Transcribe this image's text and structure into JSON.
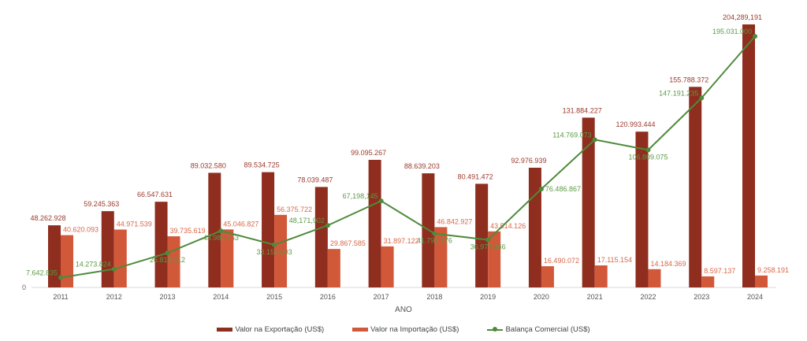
{
  "chart_data": {
    "type": "bar",
    "xlabel": "ANO",
    "ylabel": "",
    "ylim": [
      0,
      210000000
    ],
    "y_ticks": [
      "0"
    ],
    "grid": false,
    "legend_position": "bottom",
    "categories": [
      "2011",
      "2012",
      "2013",
      "2014",
      "2015",
      "2016",
      "2017",
      "2018",
      "2019",
      "2020",
      "2021",
      "2022",
      "2023",
      "2024"
    ],
    "series": [
      {
        "name": "Valor na Exportação (US$)",
        "type": "bar",
        "color": "#8f2d1e",
        "label_color": "#9b3a2c",
        "values": [
          48262928,
          59245363,
          66547631,
          89032580,
          89534725,
          78039487,
          99095267,
          88639203,
          80491472,
          92976939,
          131884227,
          120993444,
          155788372,
          204289191
        ],
        "labels": [
          "48.262.928",
          "59.245.363",
          "66.547.631",
          "89.032.580",
          "89.534.725",
          "78.039.487",
          "99.095.267",
          "88.639.203",
          "80.491.472",
          "92.976.939",
          "131.884.227",
          "120.993.444",
          "155.788.372",
          "204,289,191"
        ]
      },
      {
        "name": "Valor na Importação (US$)",
        "type": "bar",
        "color": "#d2583a",
        "label_color": "#d9684a",
        "values": [
          40620093,
          44971539,
          39735619,
          45046827,
          56375722,
          29867585,
          31897122,
          46842927,
          43514126,
          16490072,
          17115154,
          14184369,
          8597137,
          9258191
        ],
        "labels": [
          "40.620.093",
          "44.971.539",
          "39.735.619",
          "45.046.827",
          "56.375.722",
          "29.867.585",
          "31.897.122",
          "46.842.927",
          "43.514.126",
          "16.490.072",
          "17.115.154",
          "14.184.369",
          "8.597.137",
          "9.258.191"
        ]
      },
      {
        "name": "Balança Comercial (US$)",
        "type": "line",
        "color": "#4e8a3a",
        "label_color": "#5b9a45",
        "values": [
          7642835,
          14273824,
          26812012,
          43985753,
          33159003,
          48171902,
          67198145,
          41796276,
          36977346,
          76486867,
          114769073,
          106809075,
          147191235,
          195031000
        ],
        "labels": [
          "7.642.835",
          "14.273.824",
          "26.812.012",
          "43.985.753",
          "33.159.003",
          "48,171,902",
          "67,198,145",
          "41.796.276",
          "36.977.346",
          "76.486.867",
          "114.769.073",
          "106.809.075",
          "147.191.235",
          "195.031.000"
        ]
      }
    ]
  }
}
